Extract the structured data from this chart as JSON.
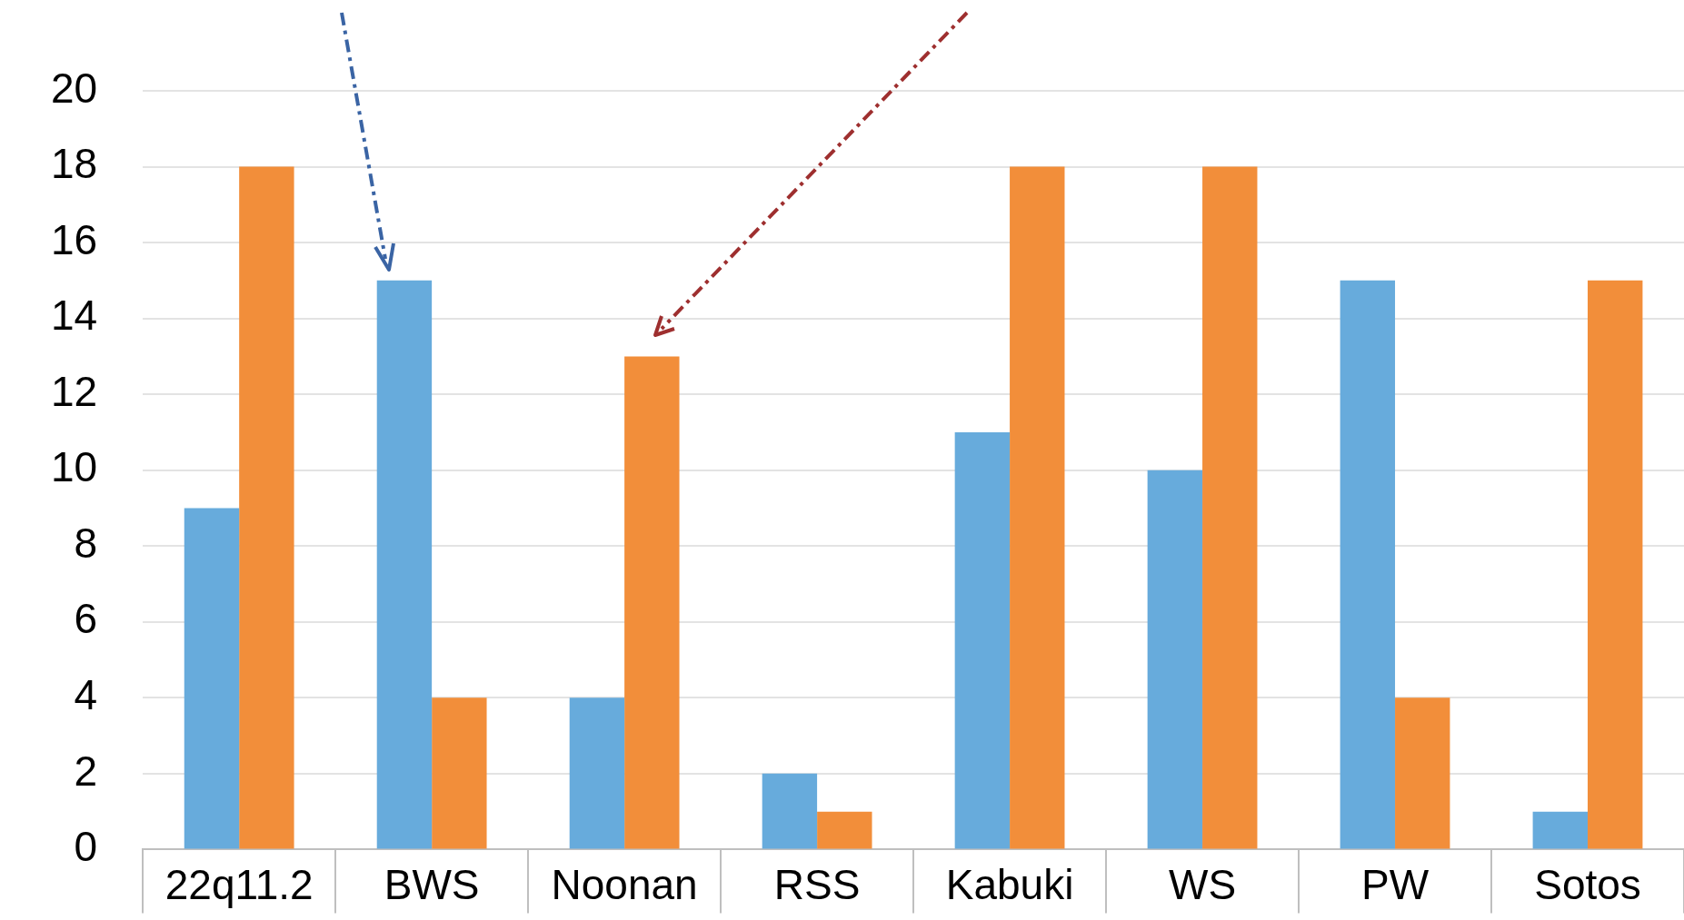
{
  "chart_data": {
    "type": "bar",
    "categories": [
      "22q11.2",
      "BWS",
      "Noonan",
      "RSS",
      "Kabuki",
      "WS",
      "PW",
      "Sotos"
    ],
    "series": [
      {
        "color": "#67abdc",
        "values": [
          9,
          15,
          4,
          2,
          11,
          10,
          15,
          1
        ]
      },
      {
        "color": "#f28e3a",
        "values": [
          18,
          4,
          13,
          1,
          18,
          18,
          4,
          15
        ]
      }
    ],
    "ylim": [
      0,
      20
    ],
    "yticks": [
      0,
      2,
      4,
      6,
      8,
      10,
      12,
      14,
      16,
      18,
      20
    ],
    "grid": "y"
  }
}
